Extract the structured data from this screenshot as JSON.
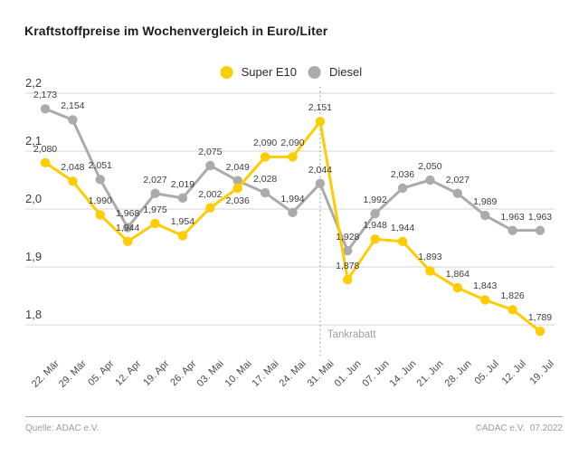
{
  "title": "Kraftstoffpreise im Wochenvergleich in Euro/Liter",
  "legend": [
    {
      "label": "Super E10",
      "color": "#FFCC00"
    },
    {
      "label": "Diesel",
      "color": "#ABABAB"
    }
  ],
  "chart_data": {
    "type": "line",
    "title": "Kraftstoffpreise im Wochenvergleich in Euro/Liter",
    "categories": [
      "22. Mär",
      "29. Mär",
      "05. Apr",
      "12. Apr",
      "19. Apr",
      "26. Apr",
      "03. Mai",
      "10. Mai",
      "17. Mai",
      "24. Mai",
      "31. Mai",
      "01. Jun",
      "07. Jun",
      "14. Jun",
      "21. Jun",
      "28. Jun",
      "05. Jul",
      "12. Jul",
      "19. Jul"
    ],
    "series": [
      {
        "name": "Super E10",
        "color": "#FFCC00",
        "values": [
          2.08,
          2.048,
          1.99,
          1.944,
          1.975,
          1.954,
          2.002,
          2.036,
          2.09,
          2.09,
          2.151,
          1.878,
          1.948,
          1.944,
          1.893,
          1.864,
          1.843,
          1.826,
          1.789
        ]
      },
      {
        "name": "Diesel",
        "color": "#ABABAB",
        "values": [
          2.173,
          2.154,
          2.051,
          1.968,
          2.027,
          2.019,
          2.075,
          2.049,
          2.028,
          1.994,
          2.044,
          1.928,
          1.992,
          2.036,
          2.05,
          2.027,
          1.989,
          1.963,
          1.963
        ]
      }
    ],
    "y_ticks": [
      "2,2",
      "2,1",
      "2,0",
      "1,9",
      "1,8"
    ],
    "y_tick_values": [
      2.2,
      2.1,
      2.0,
      1.9,
      1.8
    ],
    "ylim": [
      1.75,
      2.2
    ],
    "xlabel": "",
    "ylabel": "Euro/Liter",
    "grid": true,
    "legend_position": "top-center",
    "decimal_separator": ",",
    "annotation": {
      "label": "Tankrabatt",
      "at_category": "31. Mai",
      "style": "dotted-vertical-line"
    },
    "colors": {
      "gridline": "#d6d6d6",
      "annotation_line": "#9e9e9e",
      "point_label": "#3c3c3c"
    }
  },
  "footer": {
    "source": "Quelle: ADAC e.V.",
    "copyright": "©ADAC e.V.  07.2022"
  }
}
